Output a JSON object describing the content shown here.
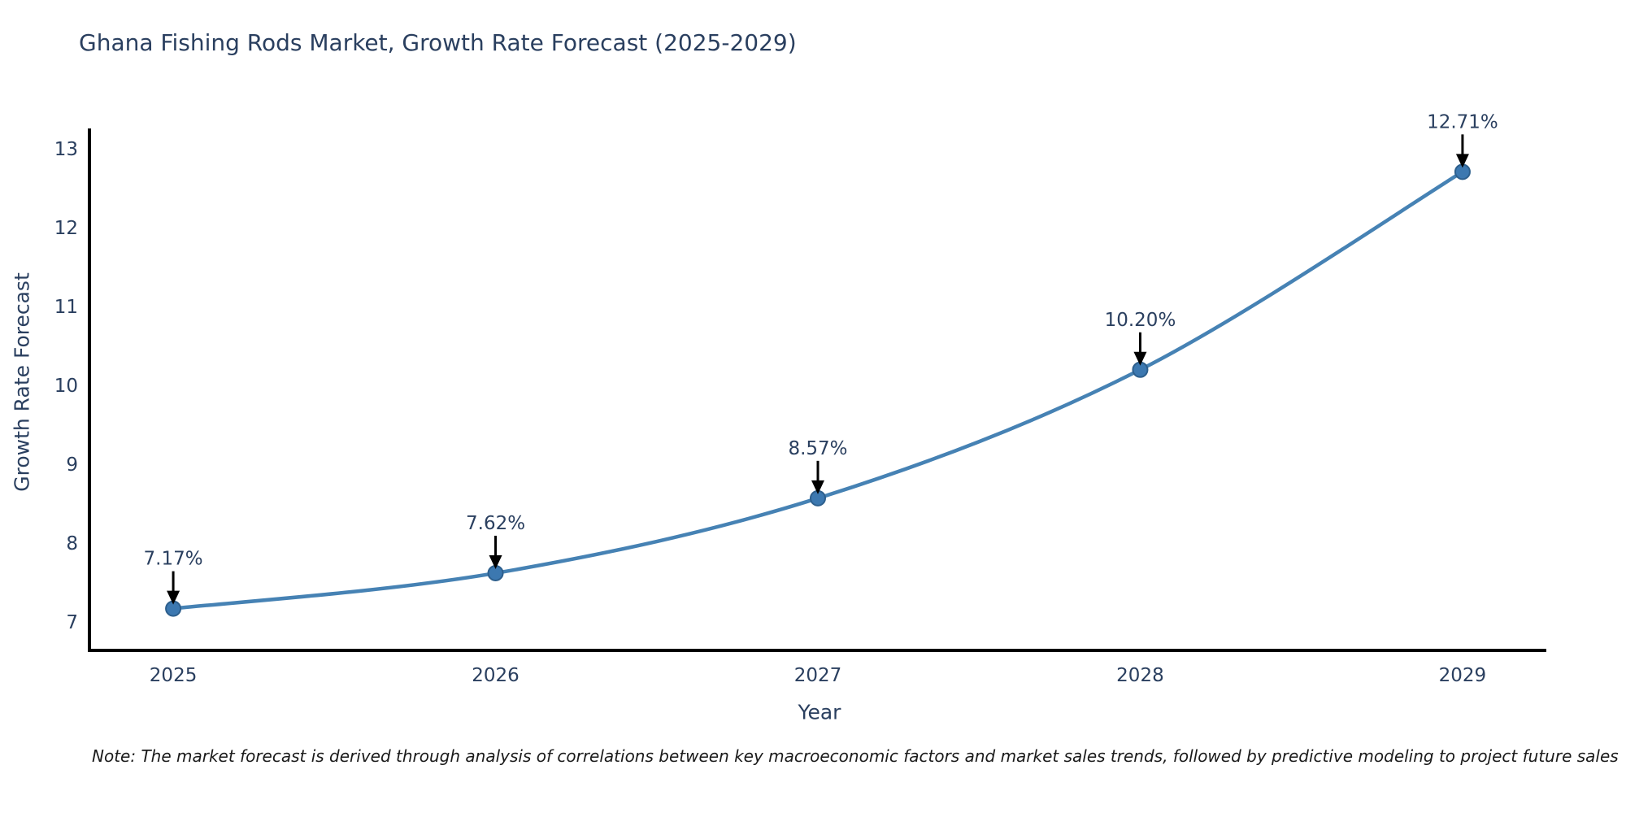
{
  "title": "Ghana Fishing Rods Market, Growth Rate Forecast (2025-2029)",
  "note": "Note: The market forecast is derived through analysis of correlations between key macroeconomic factors and market sales trends, followed by predictive modeling to project future sales",
  "chart_data": {
    "type": "line",
    "title": "Ghana Fishing Rods Market, Growth Rate Forecast (2025-2029)",
    "xlabel": "Year",
    "ylabel": "Growth Rate Forecast",
    "x": [
      2025,
      2026,
      2027,
      2028,
      2029
    ],
    "y": [
      7.17,
      7.62,
      8.57,
      10.2,
      12.71
    ],
    "point_labels": [
      "7.17%",
      "7.62%",
      "8.57%",
      "10.20%",
      "12.71%"
    ],
    "x_ticks": [
      "2025",
      "2026",
      "2027",
      "2028",
      "2029"
    ],
    "y_ticks": [
      7,
      8,
      9,
      10,
      11,
      12,
      13
    ],
    "xlim": [
      2024.74,
      2029.26
    ],
    "ylim": [
      6.64,
      13.26
    ],
    "grid": false,
    "legend": "none",
    "annotation_style": "black-arrow-down-to-point",
    "colors": {
      "line": "#4682b4",
      "marker_fill": "#3c78b0",
      "marker_edge": "#2d5f8d",
      "arrow": "#000000",
      "axis": "#000000",
      "title_text": "#2a3f5f",
      "tick_text": "#2a3f5f",
      "note_text": "#1a1a1a",
      "background": "#ffffff"
    }
  }
}
